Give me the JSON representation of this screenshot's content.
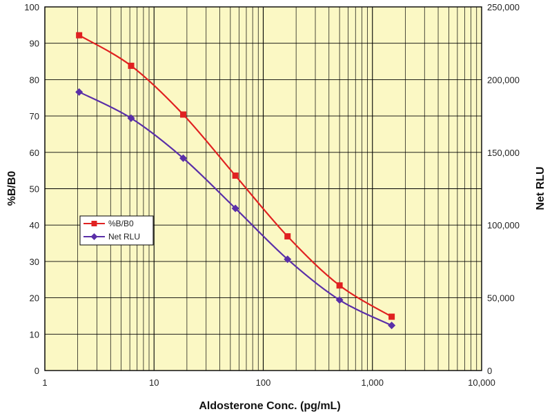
{
  "chart_data": {
    "type": "line",
    "title": "",
    "xlabel": "Aldosterone Conc. (pg/mL)",
    "ylabel": "%B/B0",
    "y2label": "Net RLU",
    "x_scale": "log",
    "xlim": [
      1,
      10000
    ],
    "ylim": [
      0,
      100
    ],
    "y2lim": [
      0,
      250000
    ],
    "x_ticks": [
      1,
      10,
      100,
      1000,
      10000
    ],
    "x_tick_labels": [
      "1",
      "10",
      "100",
      "1,000",
      "10,000"
    ],
    "y_ticks": [
      0,
      10,
      20,
      30,
      40,
      50,
      60,
      70,
      80,
      90,
      100
    ],
    "y_tick_labels": [
      "0",
      "10",
      "20",
      "30",
      "40",
      "50",
      "60",
      "70",
      "80",
      "90",
      "100"
    ],
    "y2_ticks": [
      0,
      50000,
      100000,
      150000,
      200000,
      250000
    ],
    "y2_tick_labels": [
      "0",
      "50,000",
      "100,000",
      "150,000",
      "200,000",
      "250,000"
    ],
    "grid": true,
    "legend": "left-middle",
    "colors": {
      "plot_bg": "#fbf8c4",
      "grid": "#000000"
    },
    "series": [
      {
        "name": "%B/B0",
        "axis": "left",
        "marker": "square",
        "color": "#e02121",
        "x": [
          2.06,
          6.17,
          18.5,
          55.6,
          167,
          500,
          1500
        ],
        "y": [
          92.2,
          83.8,
          70.4,
          53.6,
          36.9,
          23.4,
          14.8
        ]
      },
      {
        "name": "Net RLU",
        "axis": "right",
        "marker": "diamond",
        "color": "#5a2fa8",
        "x": [
          2.06,
          6.17,
          18.5,
          55.6,
          167,
          500,
          1500
        ],
        "y": [
          191500,
          173500,
          146000,
          111500,
          76500,
          48500,
          31000
        ]
      }
    ]
  }
}
